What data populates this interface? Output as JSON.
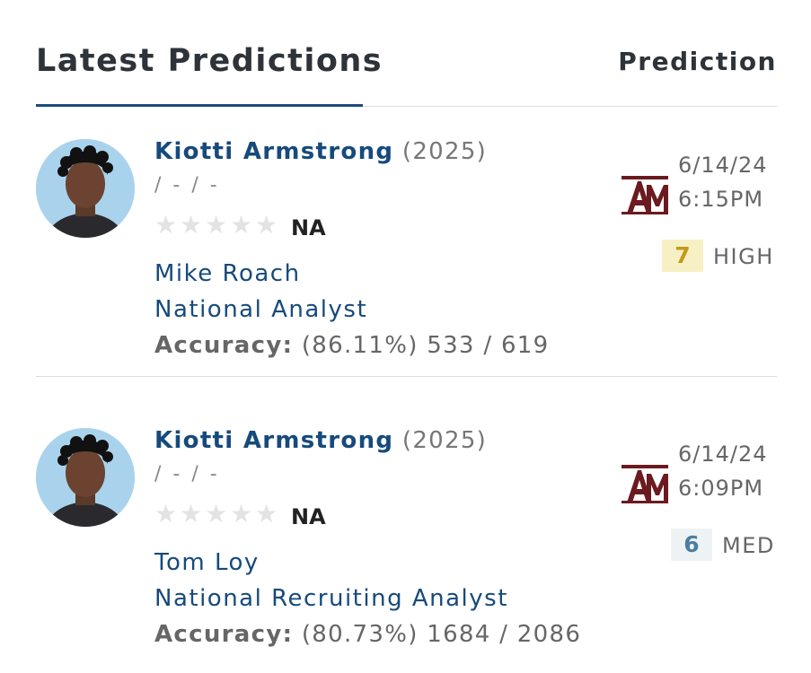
{
  "header": {
    "title": "Latest Predictions",
    "right_label": "Prediction"
  },
  "predictions": [
    {
      "player_name": "Kiotti Armstrong",
      "player_year": "(2025)",
      "player_meta": "/ - / -",
      "rating": "NA",
      "analyst_name": "Mike Roach",
      "analyst_title": "National Analyst",
      "accuracy_label": "Accuracy:",
      "accuracy_value": "(86.11%) 533 / 619",
      "team_icon": "texas-am-logo",
      "date": "6/14/24",
      "time": "6:15PM",
      "confidence_score": "7",
      "confidence_label": "HIGH",
      "confidence_bg": "#f7f0c4",
      "confidence_color": "#c49a1a"
    },
    {
      "player_name": "Kiotti Armstrong",
      "player_year": "(2025)",
      "player_meta": "/ - / -",
      "rating": "NA",
      "analyst_name": "Tom Loy",
      "analyst_title": "National Recruiting Analyst",
      "accuracy_label": "Accuracy:",
      "accuracy_value": "(80.73%) 1684 / 2086",
      "team_icon": "texas-am-logo",
      "date": "6/14/24",
      "time": "6:09PM",
      "confidence_score": "6",
      "confidence_label": "MED",
      "confidence_bg": "#edf2f5",
      "confidence_color": "#4b7da0"
    }
  ],
  "colors": {
    "link": "#174a7c",
    "team_maroon": "#6b1a1f",
    "divider": "#dcdcdc"
  }
}
